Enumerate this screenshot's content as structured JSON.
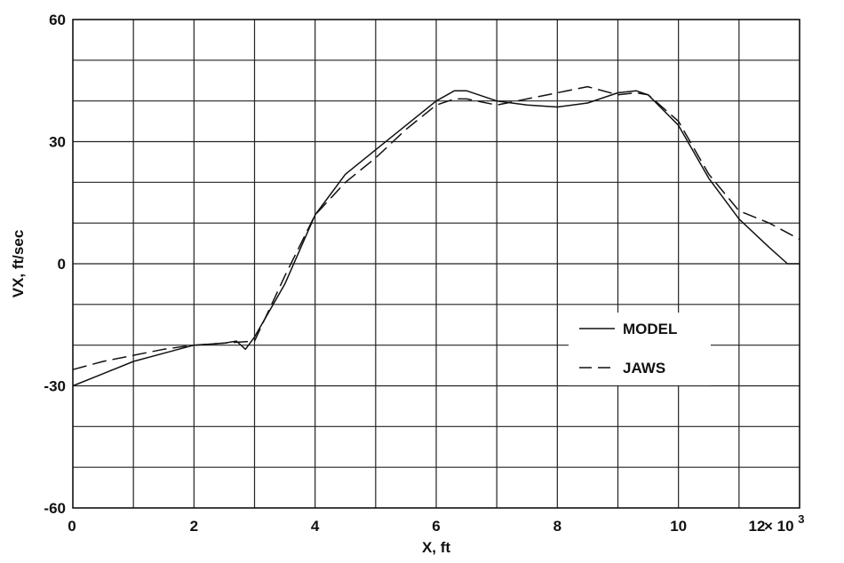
{
  "chart_data": {
    "type": "line",
    "xlabel": "X, ft",
    "ylabel": "VX, ft/sec",
    "xlim": [
      0,
      12000
    ],
    "ylim": [
      -60,
      60
    ],
    "x_ticks": [
      "0",
      "2",
      "4",
      "6",
      "8",
      "10",
      "12"
    ],
    "x_multiplier": "× 10",
    "x_multiplier_exp": "3",
    "y_ticks": [
      "60",
      "30",
      "0",
      "-30",
      "-60"
    ],
    "grid": true,
    "legend_position": "lower-right",
    "series": [
      {
        "name": "MODEL",
        "style": "solid",
        "x": [
          0,
          500,
          1000,
          1500,
          2000,
          2500,
          2700,
          2850,
          3000,
          3500,
          4000,
          4500,
          5000,
          5500,
          6000,
          6300,
          6500,
          7000,
          7500,
          8000,
          8500,
          9000,
          9300,
          9500,
          10000,
          10500,
          11000,
          11500,
          11800,
          12000
        ],
        "y": [
          -30,
          -27,
          -24,
          -22,
          -20,
          -19.5,
          -19,
          -21,
          -18,
          -5,
          12,
          22,
          28,
          34,
          40,
          42.5,
          42.5,
          40,
          39,
          38.5,
          39.5,
          42,
          42.5,
          41.5,
          34,
          21,
          11,
          4,
          0,
          0
        ]
      },
      {
        "name": "JAWS",
        "style": "dashed",
        "x": [
          0,
          500,
          1000,
          1500,
          2000,
          2500,
          3000,
          3500,
          4000,
          4500,
          5000,
          5500,
          6000,
          6300,
          6500,
          7000,
          7500,
          8000,
          8500,
          9000,
          9300,
          9500,
          10000,
          10500,
          11000,
          11500,
          12000
        ],
        "y": [
          -26,
          -24,
          -22.5,
          -21,
          -20,
          -19.5,
          -19,
          -3,
          12,
          20,
          26,
          33,
          39,
          40.5,
          40.5,
          39,
          40.5,
          42,
          43.5,
          41.5,
          42,
          41.5,
          35,
          22,
          13,
          10,
          6
        ]
      }
    ]
  }
}
